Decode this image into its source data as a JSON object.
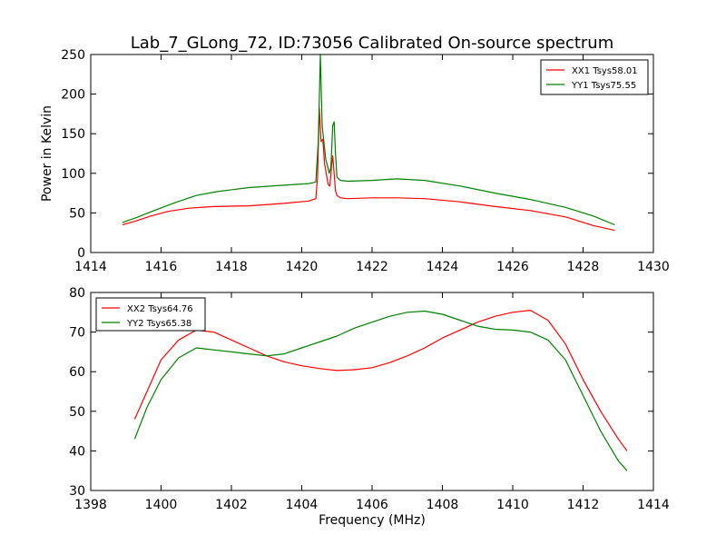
{
  "figure": {
    "title": "Lab_7_GLong_72, ID:73056 Calibrated On-source spectrum",
    "xlabel": "Frequency (MHz)",
    "ylabel": "Power in Kelvin"
  },
  "chart_data": [
    {
      "type": "line",
      "xlim": [
        1414,
        1430
      ],
      "ylim": [
        0,
        250
      ],
      "xticks": [
        1414,
        1416,
        1418,
        1420,
        1422,
        1424,
        1426,
        1428,
        1430
      ],
      "yticks": [
        0,
        50,
        100,
        150,
        200,
        250
      ],
      "legend_position": "top-right",
      "grid": false,
      "series": [
        {
          "name": "XX1 Tsys58.01",
          "color": "#ff0000",
          "x": [
            1414.9,
            1415.3,
            1415.7,
            1416.2,
            1416.8,
            1417.5,
            1418.5,
            1419.5,
            1420.2,
            1420.4,
            1420.45,
            1420.5,
            1420.55,
            1420.6,
            1420.65,
            1420.7,
            1420.75,
            1420.8,
            1420.85,
            1420.88,
            1420.92,
            1420.96,
            1421.0,
            1421.1,
            1421.3,
            1422.0,
            1422.7,
            1423.5,
            1424.5,
            1425.5,
            1426.5,
            1427.5,
            1428.3,
            1428.9
          ],
          "y": [
            35,
            40,
            46,
            52,
            56,
            58,
            59,
            62,
            65,
            68,
            95,
            182,
            140,
            143,
            112,
            99,
            86,
            84,
            110,
            122,
            100,
            78,
            72,
            69,
            68,
            69,
            69,
            68,
            64,
            58,
            53,
            45,
            34,
            28
          ]
        },
        {
          "name": "YY1 Tsys75.55",
          "color": "#008000",
          "x": [
            1414.9,
            1415.3,
            1415.8,
            1416.4,
            1417.0,
            1417.6,
            1418.5,
            1419.5,
            1420.2,
            1420.4,
            1420.47,
            1420.53,
            1420.58,
            1420.63,
            1420.68,
            1420.73,
            1420.78,
            1420.83,
            1420.88,
            1420.92,
            1420.96,
            1421.0,
            1421.1,
            1421.3,
            1422.0,
            1422.7,
            1423.5,
            1424.5,
            1425.5,
            1426.5,
            1427.5,
            1428.3,
            1428.9
          ],
          "y": [
            38,
            44,
            53,
            63,
            72,
            77,
            82,
            85,
            87,
            89,
            140,
            250,
            160,
            140,
            118,
            110,
            100,
            108,
            160,
            165,
            125,
            95,
            91,
            90,
            91,
            93,
            91,
            84,
            75,
            67,
            57,
            46,
            35
          ]
        }
      ]
    },
    {
      "type": "line",
      "xlim": [
        1398,
        1414
      ],
      "ylim": [
        30,
        80
      ],
      "xticks": [
        1398,
        1400,
        1402,
        1404,
        1406,
        1408,
        1410,
        1412,
        1414
      ],
      "yticks": [
        30,
        40,
        50,
        60,
        70,
        80
      ],
      "legend_position": "top-left",
      "grid": false,
      "series": [
        {
          "name": "XX2 Tsys64.76",
          "color": "#ff0000",
          "x": [
            1399.25,
            1399.6,
            1400.0,
            1400.5,
            1401.0,
            1401.5,
            1402.0,
            1402.5,
            1403.0,
            1403.5,
            1404.0,
            1404.5,
            1405.0,
            1405.5,
            1406.0,
            1406.5,
            1407.0,
            1407.5,
            1408.0,
            1408.5,
            1409.0,
            1409.5,
            1410.0,
            1410.5,
            1411.0,
            1411.5,
            1412.0,
            1412.5,
            1413.0,
            1413.25
          ],
          "y": [
            48,
            55,
            63,
            68,
            70.5,
            70,
            68,
            66,
            64,
            62.5,
            61.5,
            60.8,
            60.3,
            60.5,
            61,
            62.3,
            64,
            66,
            68.5,
            70.5,
            72.5,
            74,
            75,
            75.5,
            73,
            67,
            58,
            50,
            43,
            40
          ]
        },
        {
          "name": "YY2 Tsys65.38",
          "color": "#008000",
          "x": [
            1399.25,
            1399.6,
            1400.0,
            1400.5,
            1401.0,
            1401.5,
            1402.0,
            1402.5,
            1403.0,
            1403.5,
            1404.0,
            1404.5,
            1405.0,
            1405.5,
            1406.0,
            1406.5,
            1407.0,
            1407.5,
            1408.0,
            1408.5,
            1409.0,
            1409.5,
            1410.0,
            1410.5,
            1411.0,
            1411.5,
            1412.0,
            1412.5,
            1413.0,
            1413.25
          ],
          "y": [
            43,
            51,
            58,
            63.5,
            66,
            65.5,
            65,
            64.5,
            64,
            64.5,
            66,
            67.5,
            69,
            71,
            72.5,
            74,
            75,
            75.3,
            74.5,
            73,
            71.5,
            70.7,
            70.5,
            70,
            68,
            63,
            54,
            45,
            37.5,
            35
          ]
        }
      ]
    }
  ]
}
